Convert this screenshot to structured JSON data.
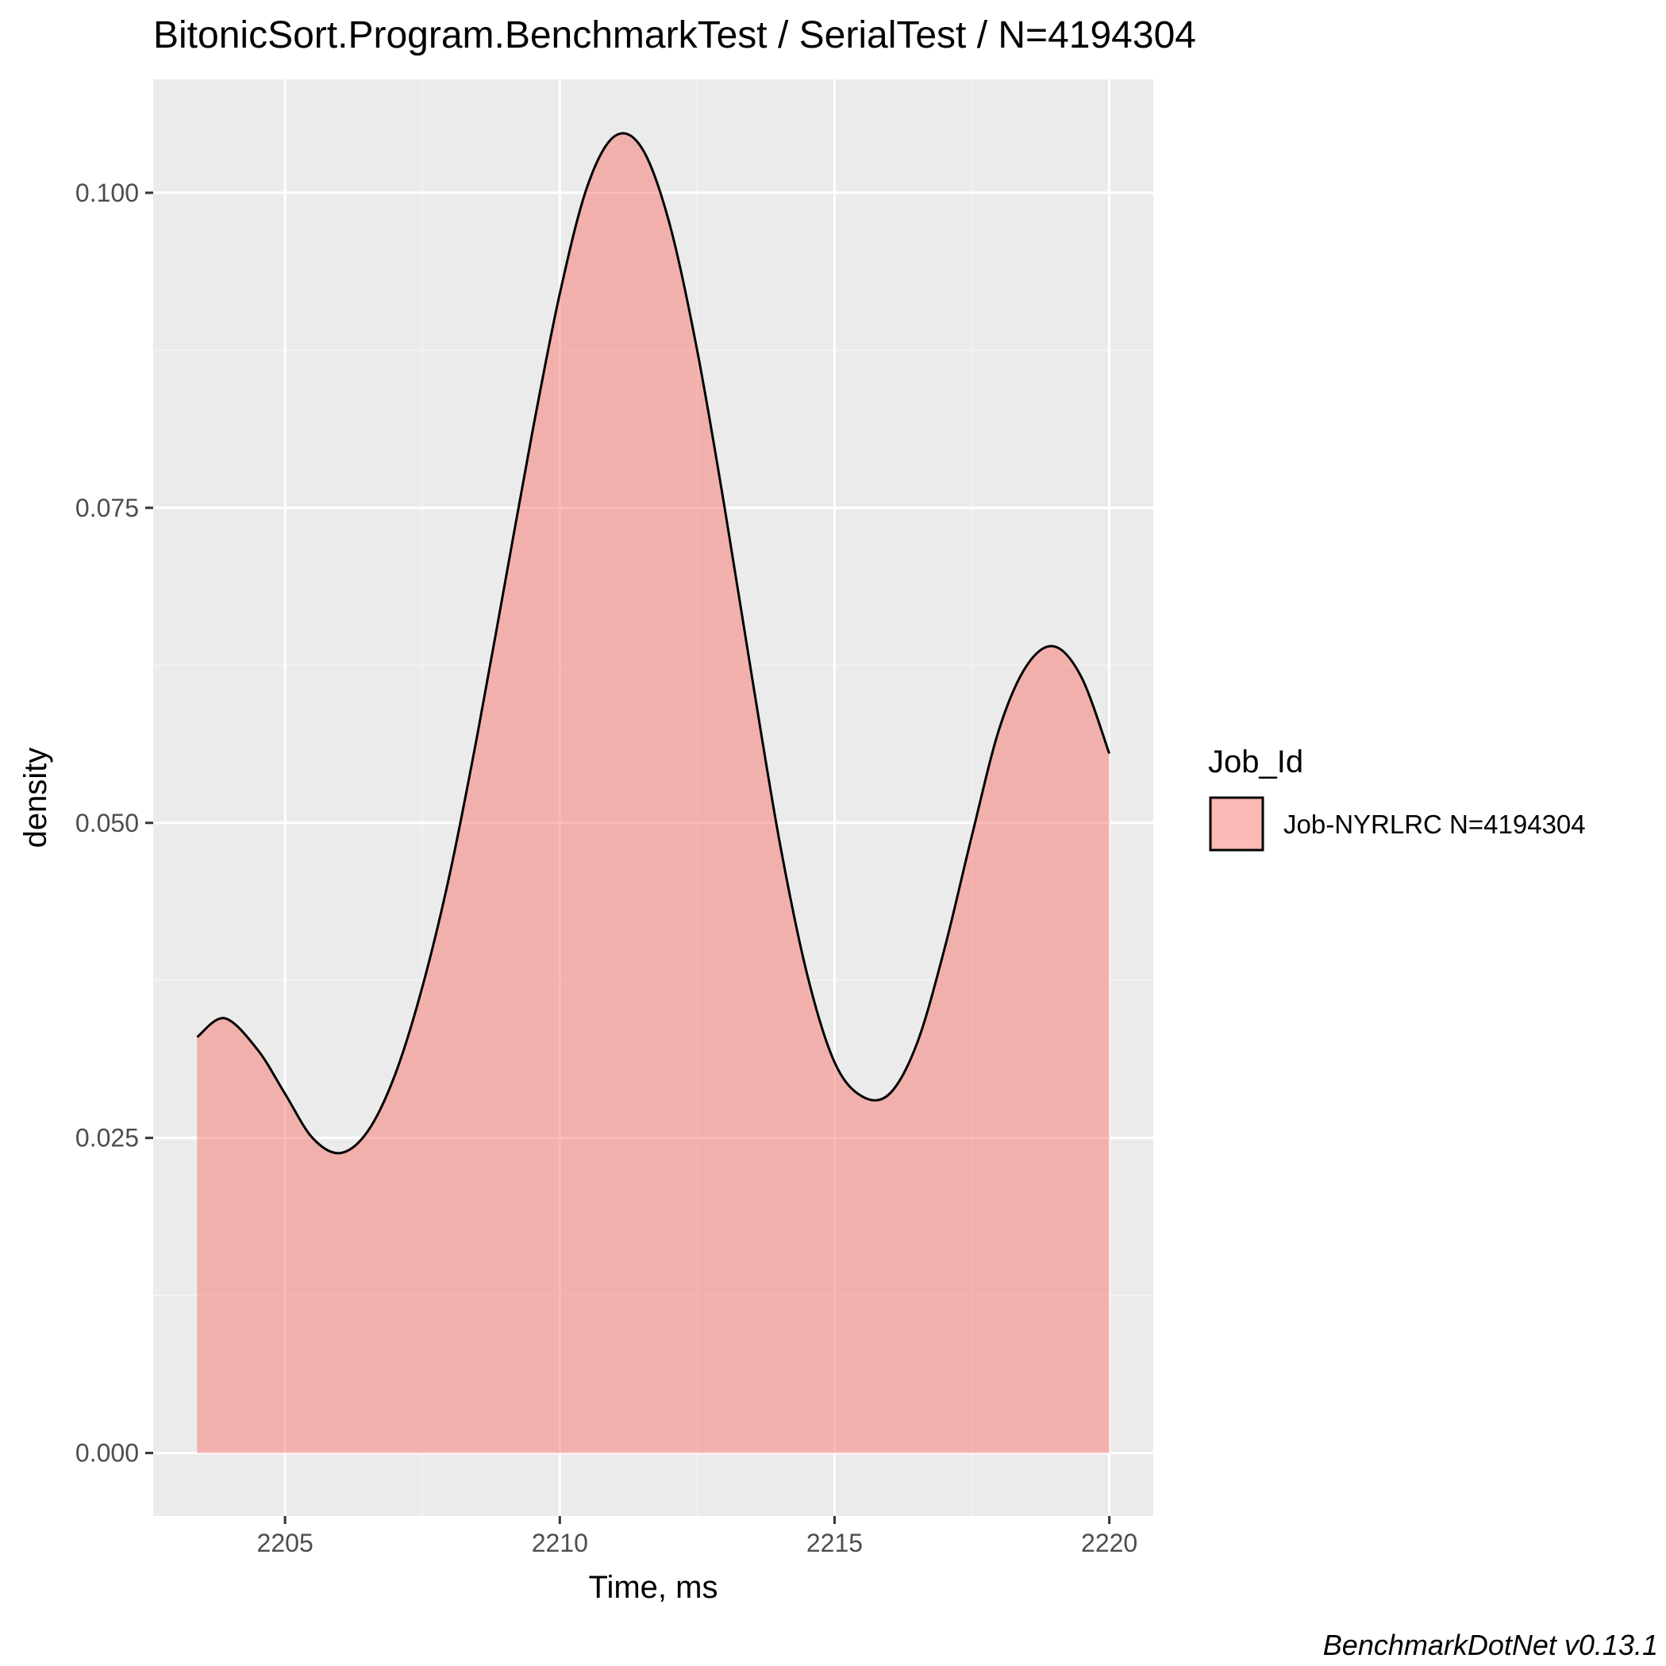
{
  "chart_data": {
    "type": "area",
    "title": "BitonicSort.Program.BenchmarkTest / SerialTest / N=4194304",
    "xlabel": "Time, ms",
    "ylabel": "density",
    "xlim": [
      2202.6,
      2220.8
    ],
    "ylim": [
      -0.005,
      0.109
    ],
    "x_ticks": [
      2205,
      2210,
      2215,
      2220
    ],
    "y_ticks": [
      0.0,
      0.025,
      0.05,
      0.075,
      0.1
    ],
    "x_tick_labels": [
      "2205",
      "2210",
      "2215",
      "2220"
    ],
    "y_tick_labels": [
      "0.000",
      "0.025",
      "0.050",
      "0.075",
      "0.100"
    ],
    "grid": true,
    "legend": {
      "title": "Job_Id",
      "placement": "right",
      "entries": [
        {
          "label": "Job-NYRLRC N=4194304",
          "color": "#F8766D"
        }
      ]
    },
    "series": [
      {
        "name": "Job-NYRLRC N=4194304",
        "color": "#F8766D",
        "x": [
          2203.4,
          2203.9,
          2204.5,
          2205.0,
          2205.5,
          2206.0,
          2206.5,
          2207.0,
          2207.5,
          2208.0,
          2208.5,
          2209.0,
          2209.5,
          2210.0,
          2210.5,
          2211.0,
          2211.5,
          2212.0,
          2212.5,
          2213.0,
          2213.5,
          2214.0,
          2214.5,
          2215.0,
          2215.5,
          2216.0,
          2216.5,
          2217.0,
          2217.5,
          2218.0,
          2218.5,
          2219.0,
          2219.5,
          2220.0
        ],
        "y": [
          0.033,
          0.0345,
          0.032,
          0.0285,
          0.025,
          0.0238,
          0.0255,
          0.03,
          0.037,
          0.046,
          0.057,
          0.069,
          0.081,
          0.092,
          0.1005,
          0.1045,
          0.1035,
          0.0975,
          0.0875,
          0.075,
          0.0615,
          0.0485,
          0.038,
          0.031,
          0.0283,
          0.0285,
          0.0325,
          0.04,
          0.049,
          0.0575,
          0.0625,
          0.064,
          0.0615,
          0.0555
        ]
      }
    ]
  },
  "caption": "BenchmarkDotNet v0.13.1",
  "colors": {
    "panel_background": "#EBEBEB",
    "grid_major": "#FFFFFF",
    "grid_minor": "#F5F5F5",
    "fill": "#F8766D",
    "outline": "#000000"
  }
}
